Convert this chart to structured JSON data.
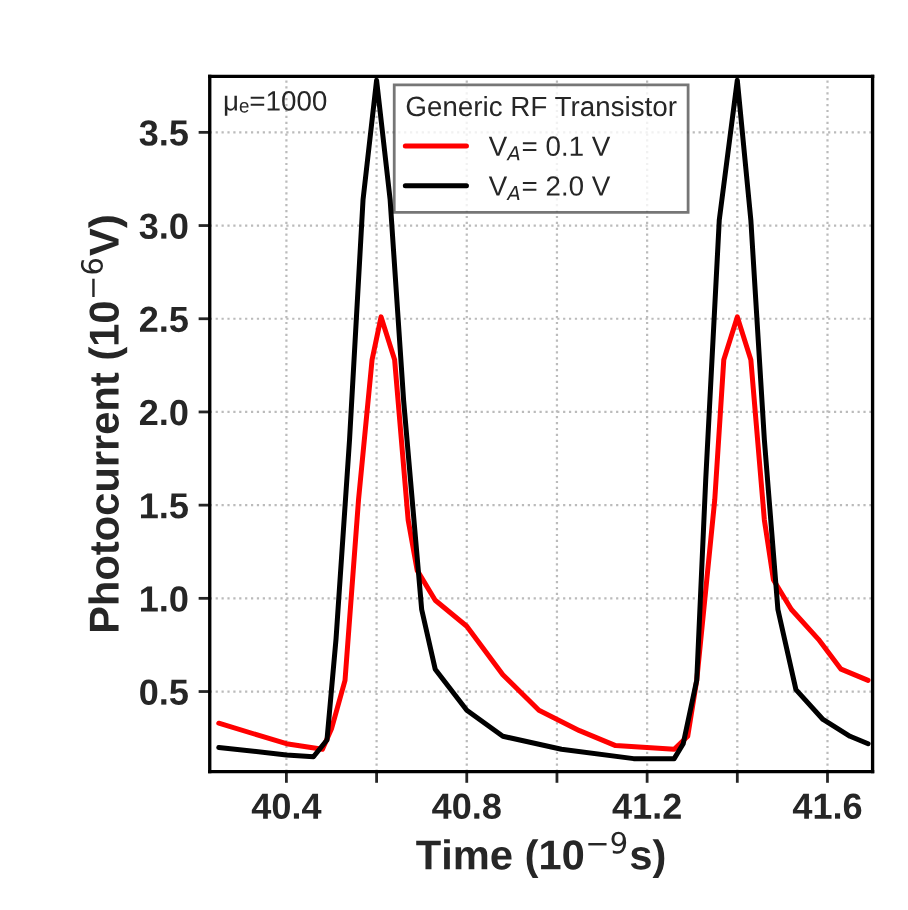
{
  "chart_data": {
    "type": "line",
    "xlabel": "Time (10$^{−9}$s)",
    "ylabel": "Photocurrent (10$^{−6}$V)",
    "legend_title": "Generic RF Transistor",
    "annotations": [
      "μₑ=1000"
    ],
    "xlim": [
      40.23,
      41.7
    ],
    "ylim": [
      0.07,
      3.8
    ],
    "xticks": [
      40.4,
      {
        "value": 40.6,
        "label": null
      },
      40.8,
      {
        "value": 41.0,
        "label": null
      },
      41.2,
      {
        "value": 41.4,
        "label": null
      },
      41.6
    ],
    "yticks": [
      0.5,
      {
        "value": 1,
        "label": "1.0"
      },
      1.5,
      {
        "value": 2,
        "label": "2.0"
      },
      2.5,
      {
        "value": 3,
        "label": "3.0"
      },
      3.5
    ],
    "grid": true,
    "legend": "top",
    "line_style": "solid",
    "series": [
      {
        "name": "V$_{A}$= 0.1 V",
        "color": "#ff0000",
        "x": [
          40.25,
          40.4,
          40.48,
          40.5,
          40.53,
          40.56,
          40.59,
          40.61,
          40.64,
          40.67,
          40.69,
          40.73,
          40.8,
          40.88,
          40.96,
          41.05,
          41.13,
          41.26,
          41.29,
          41.31,
          41.35,
          41.37,
          41.4,
          41.43,
          41.46,
          41.48,
          41.52,
          41.58,
          41.63,
          41.69
        ],
        "values": [
          0.33,
          0.22,
          0.19,
          0.3,
          0.56,
          1.53,
          2.28,
          2.51,
          2.28,
          1.42,
          1.15,
          0.99,
          0.85,
          0.59,
          0.4,
          0.29,
          0.21,
          0.19,
          0.26,
          0.56,
          1.53,
          2.28,
          2.51,
          2.28,
          1.42,
          1.1,
          0.94,
          0.78,
          0.62,
          0.56
        ]
      },
      {
        "name": "V$_{A}$= 2.0 V",
        "color": "#000000",
        "x": [
          40.25,
          40.4,
          40.46,
          40.49,
          40.51,
          40.54,
          40.57,
          40.6,
          40.63,
          40.66,
          40.7,
          40.73,
          40.8,
          40.88,
          41.01,
          41.17,
          41.26,
          41.28,
          41.31,
          41.33,
          41.36,
          41.4,
          41.43,
          41.46,
          41.49,
          41.53,
          41.59,
          41.65,
          41.69
        ],
        "values": [
          0.2,
          0.16,
          0.15,
          0.24,
          0.78,
          1.85,
          3.14,
          3.78,
          3.14,
          2.06,
          0.94,
          0.62,
          0.4,
          0.26,
          0.19,
          0.14,
          0.14,
          0.22,
          0.56,
          1.64,
          3.03,
          3.78,
          3.03,
          1.85,
          0.94,
          0.51,
          0.35,
          0.26,
          0.22
        ]
      }
    ]
  }
}
